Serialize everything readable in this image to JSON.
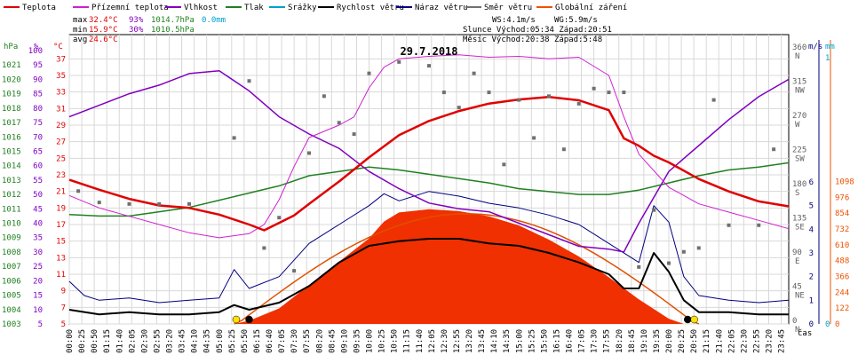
{
  "legend": [
    {
      "label": "Teplota",
      "color": "#e00000"
    },
    {
      "label": "Přízemní teplota",
      "color": "#d020d0"
    },
    {
      "label": "Vlhkost",
      "color": "#8000c0"
    },
    {
      "label": "Tlak",
      "color": "#208020"
    },
    {
      "label": "Srážky",
      "color": "#00a0d0"
    },
    {
      "label": "Rychlost větru",
      "color": "#000000"
    },
    {
      "label": "Náraz větru",
      "color": "#000080"
    },
    {
      "label": "Směr větru",
      "color": "#707070"
    },
    {
      "label": "Globální záření",
      "color": "#f05000"
    }
  ],
  "stats": {
    "max": {
      "label": "max",
      "temp": "32.4°C",
      "hum": "93%",
      "press": "1014.7hPa",
      "rain": "0.0mm"
    },
    "min": {
      "label": "min",
      "temp": "15.9°C",
      "hum": "30%",
      "press": "1010.5hPa"
    },
    "avg": {
      "label": "avg",
      "temp": "24.6°C"
    }
  },
  "info": {
    "ws": "WS:4.1m/s",
    "wg": "WG:5.9m/s",
    "sun": "Slunce Východ:05:34  Západ:20:51",
    "moon": "Měsíc  Východ:20:38  Západ:5:48"
  },
  "date": "29.7.2018",
  "axis_units": {
    "hpa": "hPa",
    "pct": "%",
    "temp": "°C",
    "ms": "m/s",
    "mm": "mm",
    "time": "čas"
  },
  "chart_data": {
    "type": "line",
    "title": "29.7.2018",
    "x_ticks": [
      "00:00",
      "00:25",
      "00:50",
      "01:15",
      "01:40",
      "02:05",
      "02:30",
      "02:55",
      "03:20",
      "03:45",
      "04:10",
      "04:35",
      "05:00",
      "05:25",
      "05:50",
      "06:15",
      "06:40",
      "07:05",
      "07:30",
      "07:55",
      "08:20",
      "08:45",
      "09:10",
      "09:35",
      "10:00",
      "10:25",
      "10:50",
      "11:15",
      "11:40",
      "12:05",
      "12:30",
      "12:55",
      "13:20",
      "13:45",
      "14:10",
      "14:35",
      "15:00",
      "15:25",
      "15:50",
      "16:15",
      "16:40",
      "17:05",
      "17:30",
      "17:55",
      "18:20",
      "18:45",
      "19:10",
      "19:35",
      "20:00",
      "20:25",
      "20:50",
      "21:15",
      "21:40",
      "22:05",
      "22:30",
      "22:55",
      "23:20",
      "23:45"
    ],
    "axes": {
      "pressure_hpa": {
        "ticks": [
          1003,
          1004,
          1005,
          1006,
          1007,
          1008,
          1009,
          1010,
          1011,
          1012,
          1013,
          1014,
          1015,
          1016,
          1017,
          1018,
          1019,
          1020,
          1021
        ],
        "range": [
          1003,
          1022
        ]
      },
      "humidity_pct": {
        "ticks": [
          5,
          10,
          15,
          20,
          25,
          30,
          35,
          40,
          45,
          50,
          55,
          60,
          65,
          70,
          75,
          80,
          85,
          90,
          95,
          100
        ],
        "range": [
          5,
          100
        ]
      },
      "temperature_c": {
        "ticks": [
          5,
          7,
          9,
          11,
          13,
          15,
          17,
          19,
          21,
          23,
          25,
          27,
          29,
          31,
          33,
          35,
          37
        ],
        "range": [
          5,
          38
        ]
      },
      "wind_dir": {
        "ticks": [
          "0 N",
          "45 NE",
          "90 E",
          "135 SE",
          "180 S",
          "225 SW",
          "270 W",
          "315 NW",
          "360 N"
        ],
        "range": [
          0,
          360
        ]
      },
      "wind_ms": {
        "ticks": [
          0,
          1,
          2,
          3,
          4,
          5,
          6
        ],
        "range": [
          0,
          6.3
        ]
      },
      "radiation": {
        "ticks": [
          0,
          122,
          244,
          366,
          488,
          610,
          732,
          854,
          976,
          1098
        ],
        "range": [
          0,
          1150
        ]
      },
      "rain_mm": {
        "ticks": [
          0,
          1
        ],
        "range": [
          0,
          1
        ]
      }
    },
    "series": [
      {
        "name": "Teplota",
        "unit": "°C",
        "x": [
          0,
          1,
          2,
          3,
          4,
          5,
          6,
          6.5,
          7,
          7.5,
          8,
          9,
          10,
          11,
          12,
          13,
          14,
          15,
          16,
          17,
          18,
          18.5,
          19,
          19.5,
          20,
          21,
          22,
          23,
          24
        ],
        "y": [
          22.4,
          21.2,
          20.1,
          19.3,
          19.0,
          18.2,
          17.0,
          16.3,
          17.2,
          18.1,
          19.5,
          22.2,
          25.1,
          27.8,
          29.5,
          30.7,
          31.6,
          32.1,
          32.4,
          32.0,
          30.8,
          27.4,
          26.5,
          25.3,
          24.5,
          22.5,
          21.0,
          19.8,
          19.2
        ]
      },
      {
        "name": "Přízemní teplota",
        "unit": "°C",
        "x": [
          0,
          1,
          2,
          3,
          4,
          5,
          6,
          6.5,
          7,
          7.5,
          8,
          9,
          9.5,
          10,
          10.5,
          11,
          12,
          13,
          14,
          15,
          16,
          17,
          18,
          18.5,
          19,
          20,
          21,
          22,
          23,
          24
        ],
        "y": [
          20.5,
          19.0,
          18.0,
          17.0,
          16.0,
          15.4,
          15.9,
          17.0,
          20.0,
          24.0,
          27.5,
          29.0,
          30.0,
          33.5,
          36.0,
          37.0,
          37.3,
          37.5,
          37.2,
          37.3,
          37.0,
          37.2,
          35.0,
          30.0,
          25.5,
          21.5,
          19.5,
          18.5,
          17.5,
          16.5
        ]
      },
      {
        "name": "Vlhkost",
        "unit": "%",
        "x": [
          0,
          1,
          2,
          3,
          4,
          5,
          6,
          7,
          8,
          9,
          10,
          11,
          12,
          13,
          14,
          15,
          16,
          17,
          18,
          18.5,
          19,
          20,
          21,
          22,
          23,
          24
        ],
        "y": [
          77,
          81,
          85,
          88,
          92,
          93,
          86,
          77,
          71,
          66,
          58,
          52,
          47,
          45,
          44,
          40,
          36,
          32,
          31,
          30,
          40,
          58,
          67,
          76,
          84,
          90
        ]
      },
      {
        "name": "Tlak",
        "unit": "hPa",
        "x": [
          0,
          1,
          2,
          3,
          4,
          5,
          6,
          7,
          8,
          9,
          10,
          11,
          12,
          13,
          14,
          15,
          16,
          17,
          18,
          19,
          20,
          21,
          22,
          23,
          24
        ],
        "y": [
          1010.6,
          1010.5,
          1010.5,
          1010.8,
          1011.1,
          1011.6,
          1012.1,
          1012.6,
          1013.3,
          1013.6,
          1013.9,
          1013.7,
          1013.4,
          1013.1,
          1012.8,
          1012.4,
          1012.2,
          1012.0,
          1012.0,
          1012.3,
          1012.8,
          1013.3,
          1013.7,
          1013.9,
          1014.2
        ]
      },
      {
        "name": "Rychlost větru",
        "unit": "m/s",
        "x": [
          0,
          1,
          2,
          3,
          4,
          5,
          5.5,
          6,
          7,
          8,
          9,
          10,
          11,
          12,
          13,
          14,
          15,
          16,
          17,
          18,
          18.5,
          19,
          19.5,
          20,
          20.5,
          21,
          22,
          23,
          24
        ],
        "y": [
          0.6,
          0.4,
          0.5,
          0.4,
          0.4,
          0.5,
          0.8,
          0.6,
          0.9,
          1.6,
          2.6,
          3.3,
          3.5,
          3.6,
          3.6,
          3.4,
          3.3,
          3.0,
          2.6,
          2.1,
          1.5,
          1.5,
          3.0,
          2.2,
          1.0,
          0.5,
          0.5,
          0.4,
          0.4
        ]
      },
      {
        "name": "Náraz větru",
        "unit": "m/s",
        "x": [
          0,
          0.5,
          1,
          2,
          3,
          4,
          5,
          5.5,
          6,
          7,
          8,
          9,
          10,
          10.5,
          11,
          12,
          13,
          14,
          15,
          16,
          17,
          18,
          19,
          19.5,
          20,
          20.5,
          21,
          22,
          23,
          24
        ],
        "y": [
          1.8,
          1.2,
          1.0,
          1.1,
          0.9,
          1.0,
          1.1,
          2.3,
          1.5,
          2.0,
          3.4,
          4.2,
          5.0,
          5.5,
          5.2,
          5.6,
          5.4,
          5.1,
          4.9,
          4.6,
          4.2,
          3.4,
          2.6,
          5.0,
          4.3,
          2.0,
          1.2,
          1.0,
          0.9,
          1.0
        ]
      },
      {
        "name": "Globální záření",
        "unit": "W/m²",
        "x": [
          0,
          5.5,
          6,
          7,
          8,
          9,
          10,
          10.5,
          11,
          12,
          13,
          14,
          15,
          16,
          17,
          18,
          19,
          20,
          20.5,
          21,
          24
        ],
        "y": [
          0,
          0,
          25,
          120,
          300,
          480,
          660,
          790,
          860,
          885,
          870,
          830,
          760,
          650,
          520,
          360,
          190,
          40,
          0,
          0,
          0
        ]
      },
      {
        "name": "Směr větru",
        "unit": "°",
        "x": [
          0.3,
          1,
          2,
          3,
          4,
          5.5,
          6,
          6.5,
          7,
          7.5,
          8,
          8.5,
          9,
          9.5,
          10,
          11,
          12,
          12.5,
          13,
          13.5,
          14,
          14.5,
          15,
          15.5,
          16,
          16.5,
          17,
          17.5,
          18,
          18.5,
          19,
          19.5,
          20,
          20.5,
          21,
          21.5,
          22,
          23,
          23.5
        ],
        "y": [
          175,
          160,
          158,
          158,
          158,
          245,
          320,
          100,
          140,
          70,
          225,
          300,
          265,
          250,
          330,
          345,
          340,
          305,
          285,
          330,
          305,
          210,
          295,
          245,
          300,
          230,
          290,
          310,
          305,
          305,
          75,
          150,
          80,
          95,
          100,
          295,
          130,
          130,
          230
        ]
      }
    ]
  }
}
